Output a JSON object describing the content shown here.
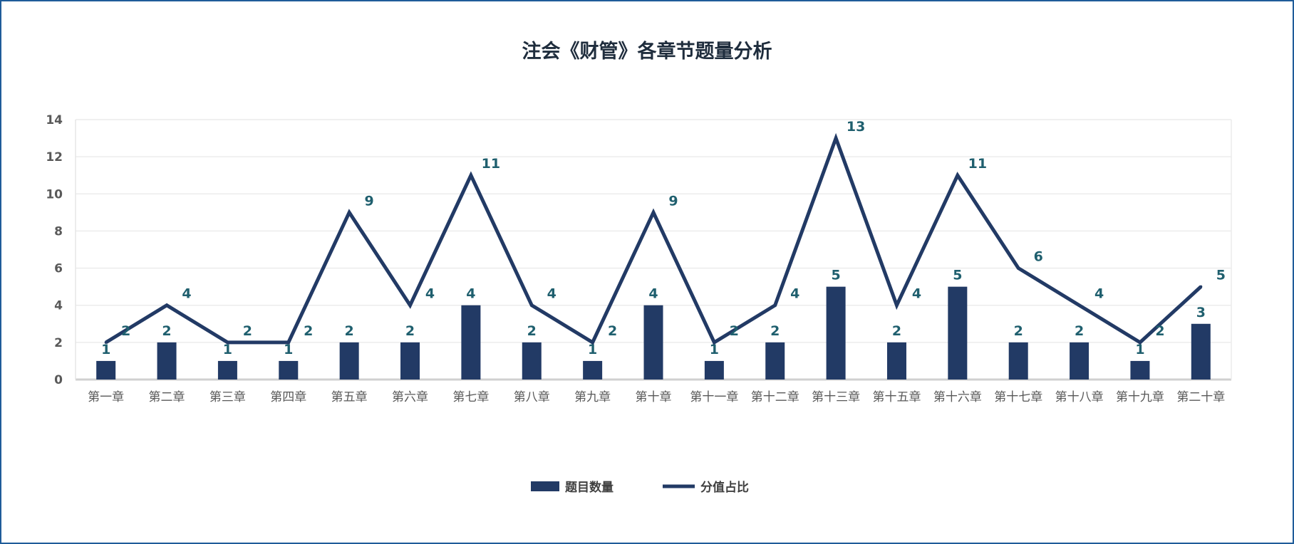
{
  "chart_data": {
    "type": "bar+line",
    "title": "注会《财管》各章节题量分析",
    "categories": [
      "第一章",
      "第二章",
      "第三章",
      "第四章",
      "第五章",
      "第六章",
      "第七章",
      "第八章",
      "第九章",
      "第十章",
      "第十一章",
      "第十二章",
      "第十三章",
      "第十五章",
      "第十六章",
      "第十七章",
      "第十八章",
      "第十九章",
      "第二十章"
    ],
    "series": [
      {
        "name": "题目数量",
        "type": "bar",
        "color": "#223a65",
        "values": [
          1,
          2,
          1,
          1,
          2,
          2,
          4,
          2,
          1,
          4,
          1,
          2,
          5,
          2,
          5,
          2,
          2,
          1,
          3
        ]
      },
      {
        "name": "分值占比",
        "type": "line",
        "color": "#223a65",
        "values": [
          2,
          4,
          2,
          2,
          9,
          4,
          11,
          4,
          2,
          9,
          2,
          4,
          13,
          4,
          11,
          6,
          4,
          2,
          5
        ]
      }
    ],
    "yticks": [
      0,
      2,
      4,
      6,
      8,
      10,
      12,
      14
    ],
    "ylim": [
      0,
      14
    ],
    "grid": true,
    "legend": "bottom",
    "label_color": "#1f5f6e"
  }
}
